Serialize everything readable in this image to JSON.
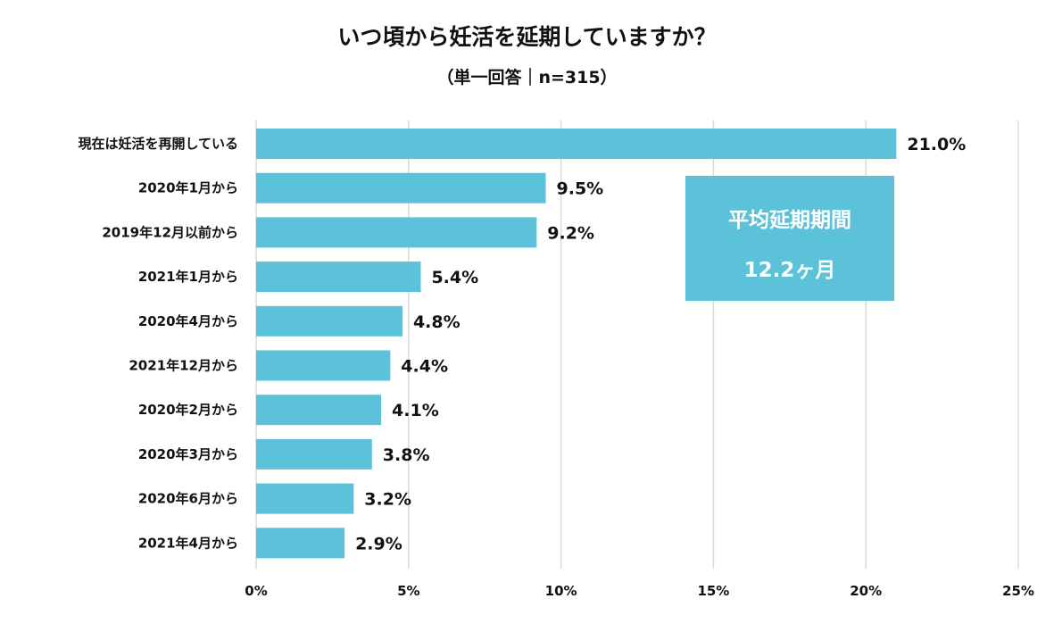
{
  "header": {
    "title": "いつ頃から妊活を延期していますか？",
    "subtitle": "（単一回答｜n=315）"
  },
  "average_box": {
    "title": "平均延期期間",
    "value": "12.2ヶ月"
  },
  "colors": {
    "bar": "#5bc2d9",
    "grid": "#d9d9d9",
    "text": "#111111"
  },
  "chart_data": {
    "type": "bar",
    "orientation": "horizontal",
    "categories": [
      "現在は妊活を再開している",
      "2020年1月から",
      "2019年12月以前から",
      "2021年1月から",
      "2020年4月から",
      "2021年12月から",
      "2020年2月から",
      "2020年3月から",
      "2020年6月から",
      "2021年4月から"
    ],
    "values": [
      21.0,
      9.5,
      9.2,
      5.4,
      4.8,
      4.4,
      4.1,
      3.8,
      3.2,
      2.9
    ],
    "value_labels": [
      "21.0%",
      "9.5%",
      "9.2%",
      "5.4%",
      "4.8%",
      "4.4%",
      "4.1%",
      "3.8%",
      "3.2%",
      "2.9%"
    ],
    "xlim": [
      0,
      25
    ],
    "xticks": [
      0,
      5,
      10,
      15,
      20,
      25
    ],
    "xtick_labels": [
      "0%",
      "5%",
      "10%",
      "15%",
      "20%",
      "25%"
    ],
    "grid": true,
    "legend": "none"
  }
}
